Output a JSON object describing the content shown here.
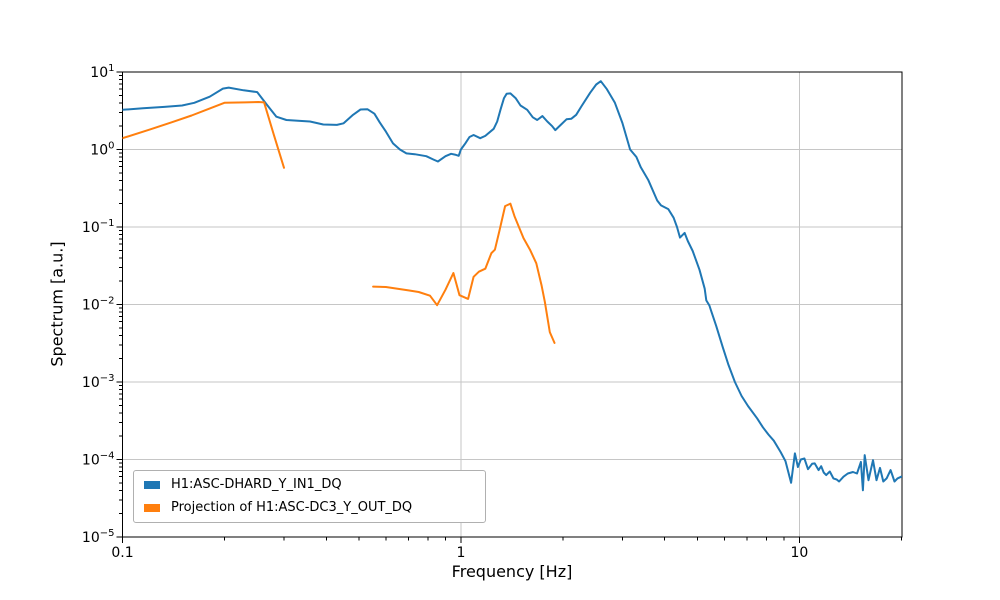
{
  "chart_data": {
    "type": "line",
    "title": "",
    "xlabel": "Frequency [Hz]",
    "ylabel": "Spectrum [a.u.]",
    "xscale": "log",
    "yscale": "log",
    "xlim": [
      0.1,
      20.1
    ],
    "ylim": [
      1e-05,
      10
    ],
    "grid": "major",
    "grid_color": "#c6c6c6",
    "axis_color": "#000000",
    "background_color": "#ffffff",
    "legend_position": "lower left",
    "legend_border_color": "#b0b0b0",
    "x_ticks": {
      "major": [
        0.1,
        1,
        10
      ],
      "labels": [
        "0.1",
        "1",
        "10"
      ]
    },
    "y_ticks": {
      "base": "10",
      "major_exponents": [
        1,
        0,
        -1,
        -2,
        -3,
        -4,
        -5
      ]
    },
    "series": [
      {
        "name": "H1:ASC-DHARD_Y_IN1_DQ",
        "color": "#1f77b4",
        "linewidth": 2,
        "segments": [
          [
            [
              0.1,
              3.25
            ],
            [
              0.115,
              3.4
            ],
            [
              0.133,
              3.55
            ],
            [
              0.15,
              3.7
            ],
            [
              0.163,
              4.0
            ],
            [
              0.181,
              4.8
            ],
            [
              0.198,
              6.1
            ],
            [
              0.206,
              6.3
            ],
            [
              0.228,
              5.8
            ],
            [
              0.25,
              5.5
            ],
            [
              0.267,
              3.8
            ],
            [
              0.285,
              2.65
            ],
            [
              0.305,
              2.4
            ],
            [
              0.33,
              2.35
            ],
            [
              0.358,
              2.3
            ],
            [
              0.392,
              2.1
            ],
            [
              0.43,
              2.08
            ],
            [
              0.45,
              2.18
            ],
            [
              0.48,
              2.8
            ],
            [
              0.505,
              3.28
            ],
            [
              0.53,
              3.3
            ],
            [
              0.555,
              2.9
            ],
            [
              0.575,
              2.25
            ],
            [
              0.6,
              1.7
            ],
            [
              0.63,
              1.2
            ],
            [
              0.66,
              1.0
            ],
            [
              0.69,
              0.89
            ],
            [
              0.73,
              0.87
            ],
            [
              0.79,
              0.82
            ],
            [
              0.83,
              0.74
            ],
            [
              0.855,
              0.7
            ],
            [
              0.9,
              0.82
            ],
            [
              0.935,
              0.88
            ],
            [
              0.96,
              0.86
            ],
            [
              0.985,
              0.83
            ],
            [
              1.0,
              1.0
            ],
            [
              1.03,
              1.2
            ],
            [
              1.06,
              1.45
            ],
            [
              1.09,
              1.54
            ],
            [
              1.14,
              1.4
            ],
            [
              1.18,
              1.5
            ],
            [
              1.25,
              1.85
            ],
            [
              1.28,
              2.3
            ],
            [
              1.31,
              3.3
            ],
            [
              1.34,
              4.6
            ],
            [
              1.365,
              5.25
            ],
            [
              1.4,
              5.3
            ],
            [
              1.45,
              4.6
            ],
            [
              1.5,
              3.7
            ],
            [
              1.57,
              3.25
            ],
            [
              1.63,
              2.6
            ],
            [
              1.68,
              2.4
            ],
            [
              1.74,
              2.7
            ],
            [
              1.8,
              2.3
            ],
            [
              1.86,
              2.0
            ],
            [
              1.9,
              1.78
            ],
            [
              1.97,
              2.07
            ],
            [
              2.05,
              2.45
            ],
            [
              2.12,
              2.5
            ],
            [
              2.19,
              2.8
            ],
            [
              2.27,
              3.6
            ],
            [
              2.41,
              5.4
            ],
            [
              2.51,
              6.9
            ],
            [
              2.59,
              7.6
            ],
            [
              2.7,
              6.0
            ],
            [
              2.85,
              4.0
            ],
            [
              3.0,
              2.2
            ],
            [
              3.16,
              1.0
            ],
            [
              3.3,
              0.8
            ],
            [
              3.4,
              0.59
            ],
            [
              3.58,
              0.4
            ],
            [
              3.8,
              0.22
            ],
            [
              3.9,
              0.19
            ],
            [
              4.1,
              0.17
            ],
            [
              4.25,
              0.132
            ],
            [
              4.35,
              0.1
            ],
            [
              4.44,
              0.073
            ],
            [
              4.58,
              0.084
            ],
            [
              4.68,
              0.066
            ],
            [
              4.84,
              0.049
            ],
            [
              5.07,
              0.028
            ],
            [
              5.25,
              0.016
            ],
            [
              5.31,
              0.0113
            ],
            [
              5.42,
              0.0097
            ],
            [
              5.48,
              0.0084
            ],
            [
              5.68,
              0.0053
            ],
            [
              5.94,
              0.0028
            ],
            [
              6.16,
              0.0017
            ],
            [
              6.45,
              0.001
            ],
            [
              6.75,
              0.00066
            ],
            [
              7.05,
              0.00049
            ],
            [
              7.5,
              0.00034
            ],
            [
              7.8,
              0.00026
            ],
            [
              8.1,
              0.00021
            ],
            [
              8.4,
              0.000175
            ],
            [
              8.8,
              0.000125
            ],
            [
              9.1,
              9.5e-05
            ],
            [
              9.45,
              5e-05
            ],
            [
              9.7,
              0.00012
            ],
            [
              9.9,
              8e-05
            ],
            [
              10.1,
              0.0001
            ],
            [
              10.35,
              0.000103
            ],
            [
              10.6,
              7.5e-05
            ],
            [
              10.9,
              8.8e-05
            ],
            [
              11.1,
              8.9e-05
            ],
            [
              11.4,
              7.3e-05
            ],
            [
              11.6,
              8.2e-05
            ],
            [
              11.8,
              6.8e-05
            ],
            [
              12.0,
              6.3e-05
            ],
            [
              12.3,
              7e-05
            ],
            [
              12.6,
              5.7e-05
            ],
            [
              12.9,
              5.5e-05
            ],
            [
              13.1,
              5.2e-05
            ],
            [
              13.5,
              6e-05
            ],
            [
              13.9,
              6.6e-05
            ],
            [
              14.4,
              6.9e-05
            ],
            [
              14.8,
              6.6e-05
            ],
            [
              15.2,
              9.3e-05
            ],
            [
              15.4,
              4e-05
            ],
            [
              15.6,
              0.000114
            ],
            [
              16.0,
              5.4e-05
            ],
            [
              16.5,
              9.8e-05
            ],
            [
              16.9,
              5.4e-05
            ],
            [
              17.3,
              7.8e-05
            ],
            [
              17.7,
              5.2e-05
            ],
            [
              18.1,
              5.7e-05
            ],
            [
              18.6,
              7.3e-05
            ],
            [
              19.1,
              5.2e-05
            ],
            [
              19.5,
              5.7e-05
            ],
            [
              20.0,
              6e-05
            ]
          ]
        ]
      },
      {
        "name": "Projection of H1:ASC-DC3_Y_OUT_DQ",
        "color": "#ff7f0e",
        "linewidth": 2,
        "segments": [
          [
            [
              0.1,
              1.4
            ],
            [
              0.12,
              1.8
            ],
            [
              0.14,
              2.25
            ],
            [
              0.16,
              2.75
            ],
            [
              0.18,
              3.35
            ],
            [
              0.2,
              4.0
            ],
            [
              0.23,
              4.05
            ],
            [
              0.252,
              4.1
            ],
            [
              0.262,
              4.05
            ],
            [
              0.28,
              1.55
            ],
            [
              0.3,
              0.58
            ]
          ],
          [
            [
              0.55,
              0.017
            ],
            [
              0.6,
              0.0168
            ],
            [
              0.65,
              0.016
            ],
            [
              0.7,
              0.0152
            ],
            [
              0.75,
              0.0145
            ],
            [
              0.81,
              0.013
            ],
            [
              0.85,
              0.0098
            ],
            [
              0.9,
              0.0155
            ],
            [
              0.95,
              0.0255
            ],
            [
              0.99,
              0.0132
            ],
            [
              1.05,
              0.0118
            ],
            [
              1.09,
              0.0228
            ],
            [
              1.13,
              0.0265
            ],
            [
              1.18,
              0.029
            ],
            [
              1.23,
              0.046
            ],
            [
              1.26,
              0.051
            ],
            [
              1.3,
              0.09
            ],
            [
              1.35,
              0.186
            ],
            [
              1.4,
              0.2
            ],
            [
              1.44,
              0.138
            ],
            [
              1.53,
              0.072
            ],
            [
              1.6,
              0.051
            ],
            [
              1.67,
              0.034
            ],
            [
              1.73,
              0.0178
            ],
            [
              1.77,
              0.0107
            ],
            [
              1.83,
              0.0044
            ],
            [
              1.89,
              0.0032
            ]
          ]
        ]
      }
    ]
  }
}
